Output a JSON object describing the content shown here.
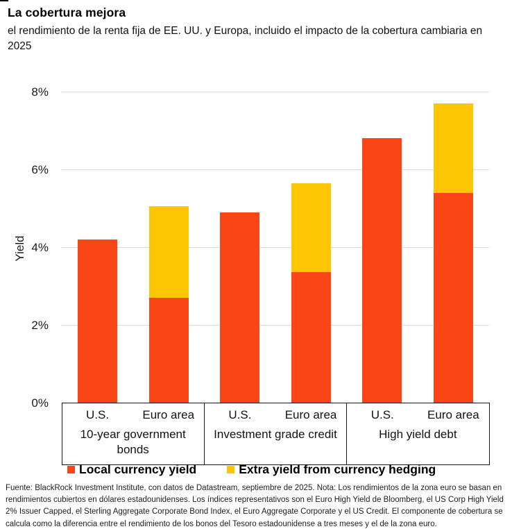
{
  "header": {
    "title": "La cobertura mejora",
    "subtitle": "el rendimiento de la renta fija de EE. UU. y Europa, incluido el impacto de la cobertura cambiaria en 2025"
  },
  "chart_data": {
    "type": "bar",
    "stacked": true,
    "title": "La cobertura mejora",
    "ylabel": "Yield",
    "ylim": [
      0,
      8
    ],
    "yticks": [
      {
        "value": 0,
        "label": "0%"
      },
      {
        "value": 2,
        "label": "2%"
      },
      {
        "value": 4,
        "label": "4%"
      },
      {
        "value": 6,
        "label": "6%"
      },
      {
        "value": 8,
        "label": "8%"
      }
    ],
    "grid": true,
    "legend_position": "bottom",
    "series": [
      {
        "name": "Local currency yield",
        "color": "#FA4616"
      },
      {
        "name": "Extra yield from currency hedging",
        "color": "#FCC605"
      }
    ],
    "groups": [
      {
        "label": "10-year government bonds",
        "bars": [
          {
            "label": "U.S.",
            "local_currency_yield": 4.2,
            "extra_yield_from_hedging": 0
          },
          {
            "label": "Euro area",
            "local_currency_yield": 2.7,
            "extra_yield_from_hedging": 2.35
          }
        ]
      },
      {
        "label": "Investment grade credit",
        "bars": [
          {
            "label": "U.S.",
            "local_currency_yield": 4.9,
            "extra_yield_from_hedging": 0
          },
          {
            "label": "Euro area",
            "local_currency_yield": 3.35,
            "extra_yield_from_hedging": 2.3
          }
        ]
      },
      {
        "label": "High yield debt",
        "bars": [
          {
            "label": "U.S.",
            "local_currency_yield": 6.8,
            "extra_yield_from_hedging": 0
          },
          {
            "label": "Euro area",
            "local_currency_yield": 5.4,
            "extra_yield_from_hedging": 2.3
          }
        ]
      }
    ]
  },
  "footer": {
    "source_note": "Fuente: BlackRock Investment Institute, con datos de Datastream, septiembre de 2025. Nota: Los rendimientos de la zona euro se basan en rendimientos cubiertos en dólares estadounidenses. Los índices representativos son el Euro High Yield de Bloomberg, el US Corp High Yield 2% Issuer Capped, el Sterling Aggregate Corporate Bond Index, el Euro Aggregate Corporate y el US Credit. El componente de cobertura se calcula como la diferencia entre el rendimiento de los bonos del Tesoro estadounidense a tres meses y el de la zona euro."
  }
}
